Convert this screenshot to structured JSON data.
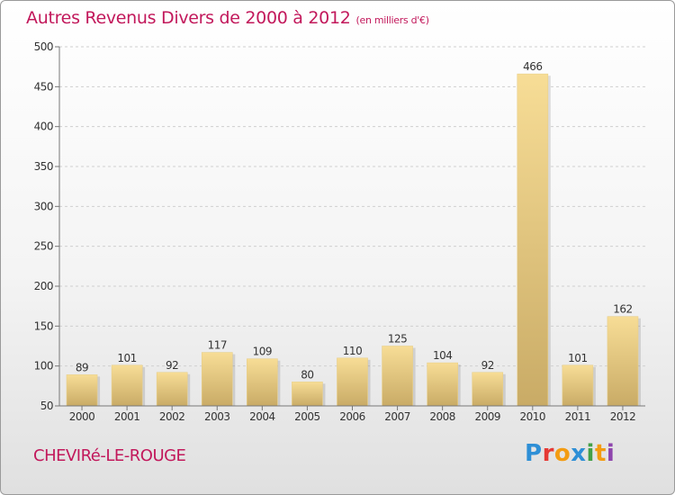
{
  "header": {
    "title": "Autres Revenus Divers de 2000 à 2012",
    "subtitle": "(en milliers d'€)"
  },
  "footer": {
    "commune": "CHEVIRé-LE-ROUGE",
    "logo": [
      "P",
      "r",
      "o",
      "x",
      "i",
      "t",
      "i"
    ]
  },
  "chart_data": {
    "type": "bar",
    "title": "Autres Revenus Divers de 2000 à 2012",
    "subtitle": "(en milliers d'€)",
    "xlabel": "",
    "ylabel": "",
    "categories": [
      "2000",
      "2001",
      "2002",
      "2003",
      "2004",
      "2005",
      "2006",
      "2007",
      "2008",
      "2009",
      "2010",
      "2011",
      "2012"
    ],
    "values": [
      89,
      101,
      92,
      117,
      109,
      80,
      110,
      125,
      104,
      92,
      466,
      101,
      162
    ],
    "ylim": [
      50,
      500
    ],
    "yticks": [
      50,
      100,
      150,
      200,
      250,
      300,
      350,
      400,
      450,
      500
    ],
    "grid": "horizontal dashed",
    "legend": "none",
    "colors": {
      "bar_light": "#f5da92",
      "bar_dark": "#c8ac66",
      "text": "#c2185b",
      "grid": "#d0d0d0"
    }
  }
}
